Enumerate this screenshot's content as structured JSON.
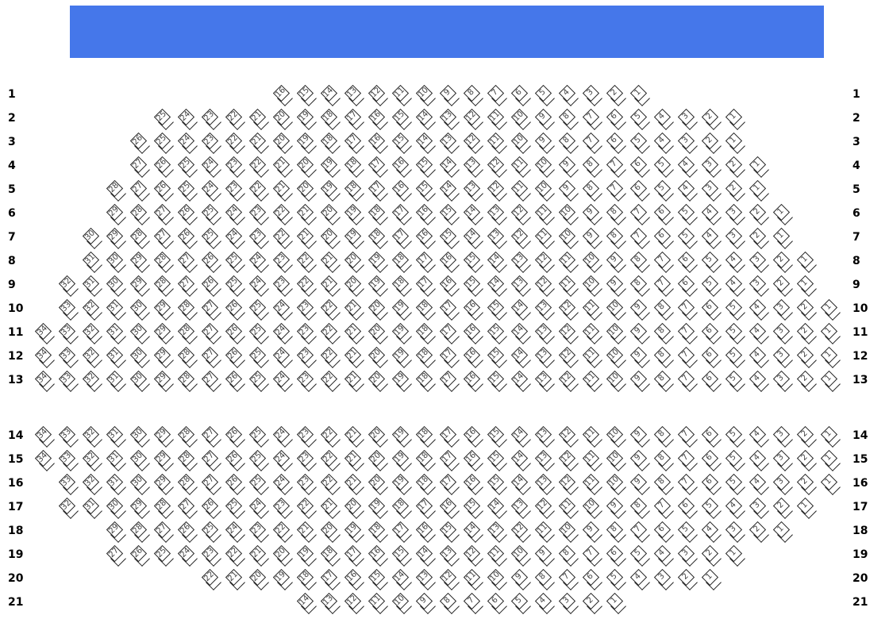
{
  "stage": {
    "color": "#4577ea"
  },
  "seat_style": {
    "border": "#222222",
    "fill": "#ffffff"
  },
  "rows": [
    {
      "label": "1",
      "seats": 16
    },
    {
      "label": "2",
      "seats": 25
    },
    {
      "label": "3",
      "seats": 26
    },
    {
      "label": "4",
      "seats": 27
    },
    {
      "label": "5",
      "seats": 28
    },
    {
      "label": "6",
      "seats": 29
    },
    {
      "label": "7",
      "seats": 30
    },
    {
      "label": "8",
      "seats": 31
    },
    {
      "label": "9",
      "seats": 32
    },
    {
      "label": "10",
      "seats": 33
    },
    {
      "label": "11",
      "seats": 34
    },
    {
      "label": "12",
      "seats": 34
    },
    {
      "label": "13",
      "seats": 34
    },
    {
      "label": "14",
      "seats": 34
    },
    {
      "label": "15",
      "seats": 34
    },
    {
      "label": "16",
      "seats": 33
    },
    {
      "label": "17",
      "seats": 32
    },
    {
      "label": "18",
      "seats": 29
    },
    {
      "label": "19",
      "seats": 27
    },
    {
      "label": "20",
      "seats": 22
    },
    {
      "label": "21",
      "seats": 14
    }
  ]
}
